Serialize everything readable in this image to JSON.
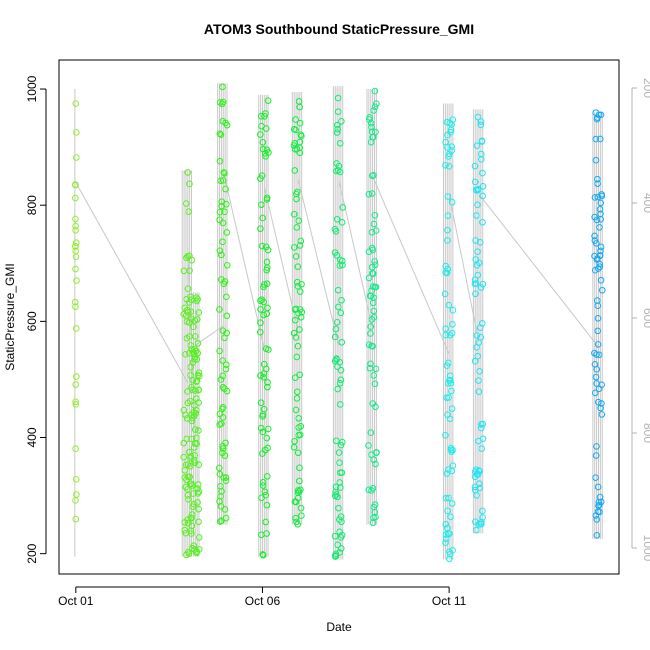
{
  "chart_data": {
    "type": "scatter",
    "title": "ATOM3 Southbound StaticPressure_GMI",
    "xlabel": "Date",
    "ylabel": "StaticPressure_GMI",
    "x_unit": "day of October",
    "xlim": [
      0.55,
      15.55
    ],
    "ylim": [
      165,
      1050
    ],
    "x_ticks": [
      1,
      6,
      11
    ],
    "x_tick_labels": [
      "Oct 01",
      "Oct 06",
      "Oct 11"
    ],
    "y_ticks": [
      200,
      400,
      600,
      800,
      1000
    ],
    "y_tick_labels": [
      "200",
      "400",
      "600",
      "800",
      "1000"
    ],
    "right_axis": {
      "color": "#b3b3b3",
      "ticks": [
        200,
        400,
        600,
        800,
        1000
      ],
      "tick_labels": [
        "200",
        "400",
        "600",
        "800",
        "1000"
      ],
      "reversed": true
    },
    "grid": false,
    "legend": "none",
    "point_style": "open circle",
    "profile_line_color": "#c8c8c8",
    "flights": [
      {
        "x": 1.0,
        "color": "#90ee30",
        "min": 195,
        "max": 1000
      },
      {
        "x": 4.0,
        "color": "#5ef024",
        "min": 195,
        "max": 860
      },
      {
        "x": 4.2,
        "color": "#52f220",
        "min": 195,
        "max": 650
      },
      {
        "x": 4.95,
        "color": "#2ef414",
        "min": 250,
        "max": 1010
      },
      {
        "x": 6.05,
        "color": "#14f028",
        "min": 195,
        "max": 990
      },
      {
        "x": 6.95,
        "color": "#12ee40",
        "min": 250,
        "max": 995
      },
      {
        "x": 8.05,
        "color": "#14eb70",
        "min": 190,
        "max": 1005
      },
      {
        "x": 8.95,
        "color": "#16ea88",
        "min": 250,
        "max": 1000
      },
      {
        "x": 11.0,
        "color": "#20ecec",
        "min": 190,
        "max": 975
      },
      {
        "x": 11.8,
        "color": "#22e4f4",
        "min": 235,
        "max": 965
      },
      {
        "x": 15.0,
        "color": "#14aaf2",
        "min": 225,
        "max": 960
      }
    ]
  }
}
